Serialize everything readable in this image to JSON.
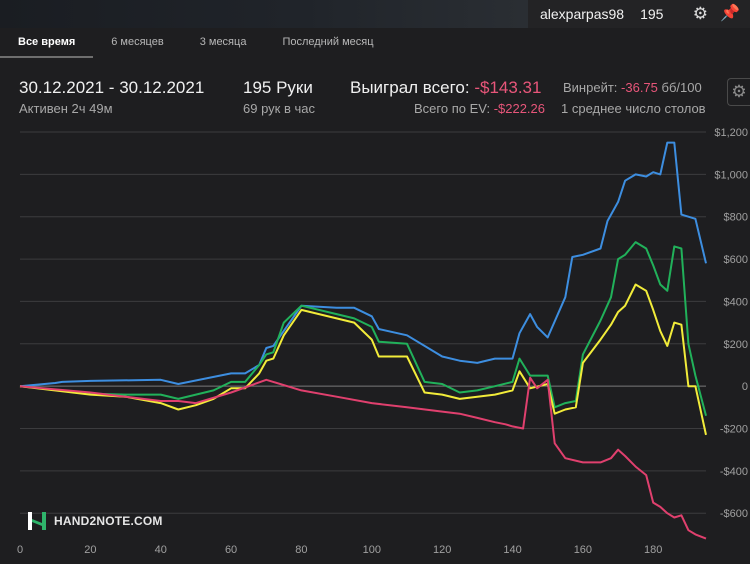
{
  "topbar": {
    "username": "alexparpas98",
    "hands_count": "195"
  },
  "tabs": [
    {
      "label": "Все время",
      "active": true
    },
    {
      "label": "6 месяцев",
      "active": false
    },
    {
      "label": "3 месяца",
      "active": false
    },
    {
      "label": "Последний месяц",
      "active": false
    }
  ],
  "summary": {
    "date_range": "30.12.2021 - 30.12.2021",
    "active_time": "Активен 2ч 49м",
    "hands": "195 Руки",
    "hands_per_hour": "69 рук в час",
    "won_label": "Выиграл всего:",
    "won_value": "-$143.31",
    "ev_label": "Всего по EV:",
    "ev_value": "-$222.26",
    "winrate_label": "Винрейт:",
    "winrate_value": "-36.75",
    "winrate_unit": "бб/100",
    "avg_tables": "1 среднее число столов"
  },
  "logo_text": "HAND2NOTE.COM",
  "colors": {
    "background": "#1e1e20",
    "blue": "#3d8ee0",
    "green": "#21b15a",
    "yellow": "#f2ec3a",
    "red": "#e0406e",
    "negative_text": "#e8567a",
    "pin": "#e6d31d"
  },
  "chart_data": {
    "type": "line",
    "xlim": [
      0,
      195
    ],
    "ylim": [
      -750,
      1200
    ],
    "x_ticks": [
      0,
      20,
      40,
      60,
      80,
      100,
      120,
      140,
      160,
      180
    ],
    "y_ticks": [
      1200,
      1000,
      800,
      600,
      400,
      200,
      0,
      -200,
      -400,
      -600
    ],
    "y_tick_labels": [
      "$1,200",
      "$1,000",
      "$800",
      "$600",
      "$400",
      "$200",
      "0",
      "-$200",
      "-$400",
      "-$600"
    ],
    "grid": true,
    "series": [
      {
        "color": "#3d8ee0",
        "x": [
          0,
          10,
          12,
          20,
          40,
          45,
          60,
          64,
          68,
          70,
          72,
          80,
          90,
          95,
          100,
          102,
          110,
          120,
          125,
          130,
          135,
          140,
          142,
          145,
          147,
          150,
          155,
          157,
          160,
          165,
          167,
          170,
          172,
          175,
          178,
          180,
          182,
          184,
          186,
          188,
          190,
          192,
          195
        ],
        "y": [
          0,
          15,
          20,
          25,
          30,
          10,
          60,
          60,
          100,
          180,
          190,
          380,
          370,
          370,
          330,
          270,
          240,
          140,
          120,
          110,
          130,
          130,
          250,
          340,
          280,
          230,
          420,
          610,
          620,
          650,
          780,
          870,
          970,
          1000,
          990,
          1010,
          1000,
          1150,
          1150,
          810,
          800,
          790,
          580
        ]
      },
      {
        "color": "#21b15a",
        "x": [
          0,
          20,
          30,
          40,
          45,
          50,
          55,
          60,
          64,
          68,
          70,
          72,
          75,
          80,
          90,
          95,
          100,
          102,
          110,
          115,
          120,
          125,
          130,
          135,
          140,
          142,
          145,
          150,
          152,
          155,
          158,
          160,
          165,
          168,
          170,
          172,
          175,
          178,
          180,
          182,
          184,
          186,
          188,
          190,
          192,
          195
        ],
        "y": [
          0,
          -35,
          -40,
          -40,
          -60,
          -40,
          -20,
          20,
          20,
          100,
          150,
          160,
          300,
          380,
          340,
          320,
          280,
          210,
          200,
          20,
          10,
          -30,
          -20,
          0,
          20,
          130,
          50,
          50,
          -100,
          -80,
          -70,
          150,
          310,
          420,
          600,
          620,
          680,
          650,
          570,
          480,
          450,
          660,
          650,
          200,
          50,
          -140
        ]
      },
      {
        "color": "#f2ec3a",
        "x": [
          0,
          20,
          30,
          40,
          45,
          50,
          55,
          60,
          64,
          68,
          70,
          72,
          75,
          80,
          90,
          95,
          100,
          102,
          110,
          115,
          120,
          125,
          130,
          135,
          140,
          142,
          145,
          150,
          152,
          155,
          158,
          160,
          165,
          168,
          170,
          172,
          175,
          178,
          180,
          182,
          184,
          186,
          188,
          190,
          192,
          195
        ],
        "y": [
          0,
          -40,
          -50,
          -80,
          -110,
          -90,
          -60,
          -10,
          -10,
          60,
          120,
          130,
          240,
          360,
          320,
          300,
          220,
          140,
          140,
          -30,
          -40,
          -60,
          -50,
          -40,
          -20,
          70,
          -10,
          10,
          -130,
          -110,
          -100,
          110,
          220,
          290,
          350,
          380,
          480,
          450,
          360,
          260,
          190,
          300,
          290,
          0,
          0,
          -230
        ]
      },
      {
        "color": "#e0406e",
        "x": [
          0,
          20,
          30,
          40,
          45,
          50,
          60,
          70,
          72,
          80,
          90,
          100,
          110,
          120,
          125,
          130,
          135,
          138,
          140,
          143,
          145,
          147,
          150,
          152,
          155,
          160,
          165,
          168,
          170,
          172,
          175,
          178,
          180,
          182,
          184,
          186,
          188,
          190,
          192,
          195
        ],
        "y": [
          0,
          -30,
          -50,
          -70,
          -70,
          -80,
          -30,
          30,
          20,
          -20,
          -50,
          -80,
          -100,
          -120,
          -130,
          -150,
          -170,
          -180,
          -190,
          -200,
          40,
          -10,
          30,
          -270,
          -340,
          -360,
          -360,
          -340,
          -300,
          -330,
          -380,
          -420,
          -550,
          -570,
          -600,
          -620,
          -610,
          -680,
          -700,
          -720
        ]
      }
    ]
  }
}
